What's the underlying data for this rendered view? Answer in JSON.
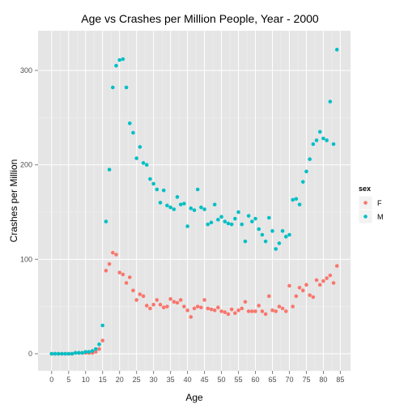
{
  "chart_data": {
    "type": "scatter",
    "title": "Age vs Crashes per Million People, Year -  2000",
    "xlabel": "Age",
    "ylabel": "Crashes per Million",
    "xlim": [
      -4,
      88
    ],
    "ylim": [
      -18,
      342
    ],
    "x_ticks": [
      0,
      5,
      10,
      15,
      20,
      25,
      30,
      35,
      40,
      45,
      50,
      55,
      60,
      65,
      70,
      75,
      80,
      85
    ],
    "y_ticks": [
      0,
      100,
      200,
      300
    ],
    "grid": true,
    "legend": {
      "title": "sex",
      "position": "right"
    },
    "series": [
      {
        "name": "F",
        "color": "#F8766D",
        "x": [
          0,
          1,
          2,
          3,
          4,
          5,
          6,
          7,
          8,
          9,
          10,
          11,
          12,
          13,
          14,
          15,
          16,
          17,
          18,
          19,
          20,
          21,
          22,
          23,
          24,
          25,
          26,
          27,
          28,
          29,
          30,
          31,
          32,
          33,
          34,
          35,
          36,
          37,
          38,
          39,
          40,
          41,
          42,
          43,
          44,
          45,
          46,
          47,
          48,
          49,
          50,
          51,
          52,
          53,
          54,
          55,
          56,
          57,
          58,
          59,
          60,
          61,
          62,
          63,
          64,
          65,
          66,
          67,
          68,
          69,
          70,
          71,
          72,
          73,
          74,
          75,
          76,
          77,
          78,
          79,
          80,
          81,
          82,
          83,
          84
        ],
        "y": [
          0,
          0,
          0,
          0,
          0,
          0,
          0,
          1,
          1,
          1,
          1,
          1,
          1,
          2,
          5,
          14,
          88,
          95,
          107,
          105,
          86,
          84,
          75,
          81,
          67,
          57,
          63,
          61,
          51,
          48,
          52,
          57,
          52,
          49,
          50,
          58,
          55,
          54,
          57,
          50,
          46,
          39,
          48,
          50,
          49,
          57,
          48,
          47,
          46,
          49,
          45,
          44,
          42,
          47,
          43,
          46,
          48,
          55,
          45,
          45,
          45,
          51,
          45,
          42,
          61,
          46,
          45,
          50,
          48,
          45,
          72,
          50,
          61,
          70,
          67,
          73,
          62,
          60,
          78,
          73,
          77,
          80,
          83,
          75,
          93
        ]
      },
      {
        "name": "M",
        "color": "#00BFC4",
        "x": [
          0,
          1,
          2,
          3,
          4,
          5,
          6,
          7,
          8,
          9,
          10,
          11,
          12,
          13,
          14,
          15,
          16,
          17,
          18,
          19,
          20,
          21,
          22,
          23,
          24,
          25,
          26,
          27,
          28,
          29,
          30,
          31,
          32,
          33,
          34,
          35,
          36,
          37,
          38,
          39,
          40,
          41,
          42,
          43,
          44,
          45,
          46,
          47,
          48,
          49,
          50,
          51,
          52,
          53,
          54,
          55,
          56,
          57,
          58,
          59,
          60,
          61,
          62,
          63,
          64,
          65,
          66,
          67,
          68,
          69,
          70,
          71,
          72,
          73,
          74,
          75,
          76,
          77,
          78,
          79,
          80,
          81,
          82,
          83,
          84
        ],
        "y": [
          0,
          0,
          0,
          0,
          0,
          0,
          0,
          1,
          1,
          1,
          2,
          2,
          3,
          5,
          10,
          30,
          140,
          195,
          282,
          305,
          311,
          312,
          282,
          244,
          234,
          207,
          219,
          202,
          200,
          185,
          180,
          174,
          160,
          173,
          157,
          155,
          153,
          166,
          158,
          159,
          135,
          154,
          152,
          174,
          155,
          153,
          137,
          139,
          158,
          142,
          145,
          140,
          138,
          137,
          143,
          150,
          137,
          119,
          146,
          140,
          143,
          132,
          126,
          119,
          144,
          130,
          111,
          117,
          130,
          124,
          126,
          163,
          164,
          158,
          182,
          193,
          206,
          222,
          226,
          235,
          228,
          226,
          267,
          222,
          322
        ]
      }
    ]
  }
}
